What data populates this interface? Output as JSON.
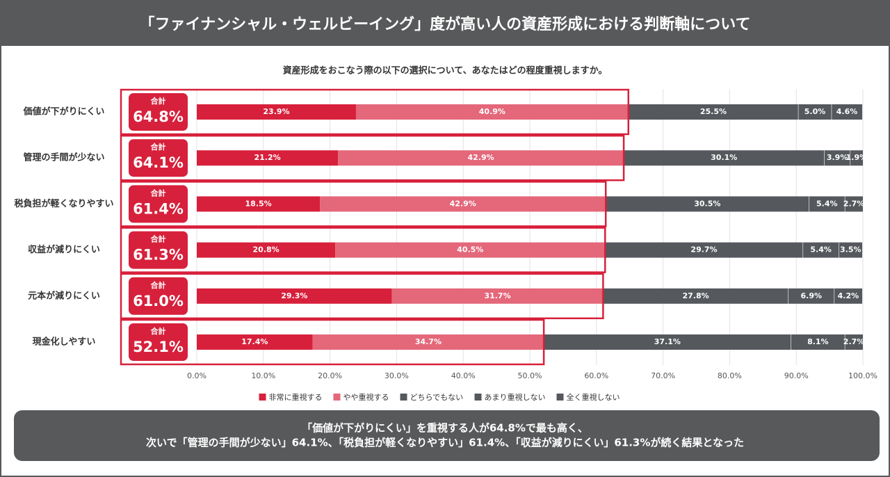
{
  "header": {
    "title": "「ファイナンシャル・ウェルビーイング」度が高い人の資産形成における判断軸について"
  },
  "chart_data": {
    "type": "stacked-bar-horizontal",
    "subtitle": "資産形成をおこなう際の以下の選択について、あなたはどの程度重視しますか。",
    "categories": [
      "価値が下がりにくい",
      "管理の手間が少ない",
      "税負担が軽くなりやすい",
      "収益が減りにくい",
      "元本が減りにくい",
      "現金化しやすい"
    ],
    "series": [
      {
        "name": "非常に重視する",
        "color": "#d7203b",
        "values": [
          23.9,
          21.2,
          18.5,
          20.8,
          29.3,
          17.4
        ],
        "value_labels": [
          "23.9%",
          "21.2%",
          "18.5%",
          "20.8%",
          "29.3%",
          "17.4%"
        ]
      },
      {
        "name": "やや重視する",
        "color": "#e4677a",
        "values": [
          40.9,
          42.9,
          42.9,
          40.5,
          31.7,
          34.7
        ],
        "value_labels": [
          "40.9%",
          "42.9%",
          "42.9%",
          "40.5%",
          "31.7%",
          "34.7%"
        ]
      },
      {
        "name": "どちらでもない",
        "color": "#55585c",
        "values": [
          25.5,
          30.1,
          30.5,
          29.7,
          27.8,
          37.1
        ],
        "value_labels": [
          "25.5%",
          "30.1%",
          "30.5%",
          "29.7%",
          "27.8%",
          "37.1%"
        ]
      },
      {
        "name": "あまり重視しない",
        "color": "#55585c",
        "values": [
          5.0,
          3.9,
          5.4,
          5.4,
          6.9,
          8.1
        ],
        "value_labels": [
          "5.0%",
          "3.9%",
          "5.4%",
          "5.4%",
          "6.9%",
          "8.1%"
        ]
      },
      {
        "name": "全く重視しない",
        "color": "#55585c",
        "values": [
          4.6,
          1.9,
          2.7,
          3.5,
          4.2,
          2.7
        ],
        "value_labels": [
          "4.6%",
          "1.9%",
          "2.7%",
          "3.5%",
          "4.2%",
          "2.7%"
        ]
      }
    ],
    "totals": {
      "label": "合計",
      "color": "#d7203b",
      "values": [
        64.8,
        64.1,
        61.4,
        61.3,
        61.0,
        52.1
      ],
      "value_labels": [
        "64.8%",
        "64.1%",
        "61.4%",
        "61.3%",
        "61.0%",
        "52.1%"
      ]
    },
    "xlim": [
      0,
      100
    ],
    "xticks": [
      {
        "value": 0,
        "label": "0.0%"
      },
      {
        "value": 10,
        "label": "10.0%"
      },
      {
        "value": 20,
        "label": "20.0%"
      },
      {
        "value": 30,
        "label": "30.0%"
      },
      {
        "value": 40,
        "label": "40.0%"
      },
      {
        "value": 50,
        "label": "50.0%"
      },
      {
        "value": 60,
        "label": "60.0%"
      },
      {
        "value": 70,
        "label": "70.0%"
      },
      {
        "value": 80,
        "label": "80.0%"
      },
      {
        "value": 90,
        "label": "90.0%"
      },
      {
        "value": 100,
        "label": "100.0%"
      }
    ],
    "grid": true
  },
  "footer": {
    "lines": [
      "「価値が下がりにくい」を重視する人が64.8%で最も高く、",
      "次いで「管理の手間が少ない」64.1%、「税負担が軽くなりやすい」61.4%、「収益が減りにくい」61.3%が続く結果となった"
    ]
  }
}
